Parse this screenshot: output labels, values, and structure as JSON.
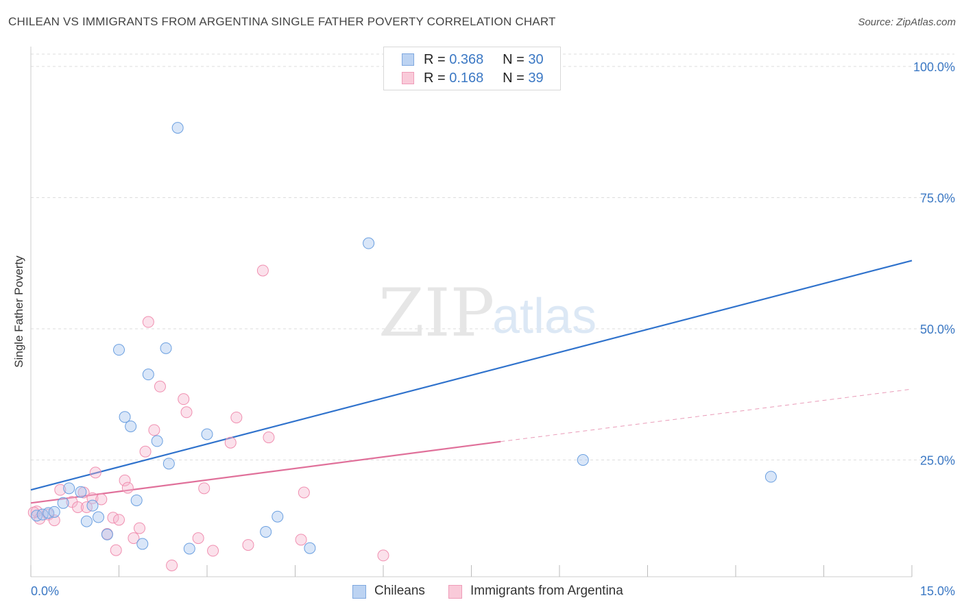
{
  "title": "CHILEAN VS IMMIGRANTS FROM ARGENTINA SINGLE FATHER POVERTY CORRELATION CHART",
  "source": "Source: ZipAtlas.com",
  "watermark": {
    "zip": "ZIP",
    "atlas": "atlas"
  },
  "legend_top": [
    {
      "r_label": "R =",
      "r_value": "0.368",
      "n_label": "N =",
      "n_value": "30"
    },
    {
      "r_label": "R =",
      "r_value": "0.168",
      "n_label": "N =",
      "n_value": "39"
    }
  ],
  "chart_data": {
    "type": "scatter",
    "title": "CHILEAN VS IMMIGRANTS FROM ARGENTINA SINGLE FATHER POVERTY CORRELATION CHART",
    "xlabel": "",
    "ylabel": "Single Father Poverty",
    "xlim": [
      0,
      15
    ],
    "ylim": [
      0,
      100
    ],
    "x_tick_labels": [
      "0.0%",
      "15.0%"
    ],
    "y_tick_labels": [
      "100.0%",
      "75.0%",
      "50.0%",
      "25.0%"
    ],
    "y_tick_values": [
      100,
      75,
      50,
      25
    ],
    "grid": "horizontal dashed",
    "legend_placement": "bottom",
    "colors": {
      "chileans": "#6a9fe0",
      "argentina": "#f08fb0",
      "chileans_line": "#2f72cc",
      "argentina_line": "#e0709a"
    },
    "series": [
      {
        "name": "Chileans",
        "points": [
          [
            0.1,
            14.4
          ],
          [
            0.2,
            14.6
          ],
          [
            0.3,
            14.9
          ],
          [
            0.4,
            15.1
          ],
          [
            0.55,
            16.8
          ],
          [
            0.65,
            19.6
          ],
          [
            0.85,
            18.9
          ],
          [
            0.95,
            13.3
          ],
          [
            1.05,
            16.3
          ],
          [
            1.15,
            14.1
          ],
          [
            1.3,
            10.8
          ],
          [
            1.5,
            46.0
          ],
          [
            1.6,
            33.2
          ],
          [
            1.7,
            31.4
          ],
          [
            1.8,
            17.3
          ],
          [
            1.9,
            9.0
          ],
          [
            2.0,
            41.3
          ],
          [
            2.15,
            28.6
          ],
          [
            2.3,
            46.3
          ],
          [
            2.35,
            24.3
          ],
          [
            2.5,
            88.3
          ],
          [
            2.7,
            8.1
          ],
          [
            3.0,
            29.9
          ],
          [
            4.0,
            11.3
          ],
          [
            4.2,
            14.2
          ],
          [
            4.75,
            8.2
          ],
          [
            5.75,
            66.3
          ],
          [
            8.0,
            100.0
          ],
          [
            9.4,
            25.0
          ],
          [
            12.6,
            21.8
          ]
        ],
        "trend": {
          "x": [
            0,
            15
          ],
          "y": [
            19.3,
            63.0
          ]
        }
      },
      {
        "name": "Immigrants from Argentina",
        "points": [
          [
            0.1,
            15.2
          ],
          [
            0.15,
            13.8
          ],
          [
            0.3,
            14.6
          ],
          [
            0.4,
            13.5
          ],
          [
            0.5,
            19.3
          ],
          [
            0.7,
            17.0
          ],
          [
            0.8,
            16.0
          ],
          [
            0.9,
            18.8
          ],
          [
            0.95,
            16.0
          ],
          [
            1.05,
            17.7
          ],
          [
            1.1,
            22.6
          ],
          [
            1.2,
            17.5
          ],
          [
            1.3,
            10.9
          ],
          [
            1.4,
            14.0
          ],
          [
            1.45,
            7.8
          ],
          [
            1.5,
            13.6
          ],
          [
            1.6,
            21.1
          ],
          [
            1.65,
            19.7
          ],
          [
            1.75,
            10.1
          ],
          [
            1.85,
            12.0
          ],
          [
            1.95,
            26.6
          ],
          [
            2.0,
            51.3
          ],
          [
            2.1,
            30.7
          ],
          [
            2.2,
            39.0
          ],
          [
            2.4,
            4.9
          ],
          [
            2.6,
            36.6
          ],
          [
            2.65,
            34.1
          ],
          [
            2.85,
            10.1
          ],
          [
            2.95,
            19.6
          ],
          [
            3.1,
            7.7
          ],
          [
            3.4,
            28.3
          ],
          [
            3.5,
            33.1
          ],
          [
            3.7,
            8.8
          ],
          [
            3.95,
            61.1
          ],
          [
            4.05,
            29.3
          ],
          [
            4.6,
            9.8
          ],
          [
            4.65,
            18.8
          ],
          [
            6.0,
            6.8
          ],
          [
            0.05,
            15.0
          ]
        ],
        "trend": {
          "x": [
            0,
            8.0
          ],
          "y": [
            16.8,
            28.5
          ]
        },
        "trend_extrapolated": {
          "x": [
            8.0,
            15
          ],
          "y": [
            28.5,
            38.5
          ]
        }
      }
    ]
  },
  "legend_bottom": [
    {
      "label": "Chileans"
    },
    {
      "label": "Immigrants from Argentina"
    }
  ]
}
